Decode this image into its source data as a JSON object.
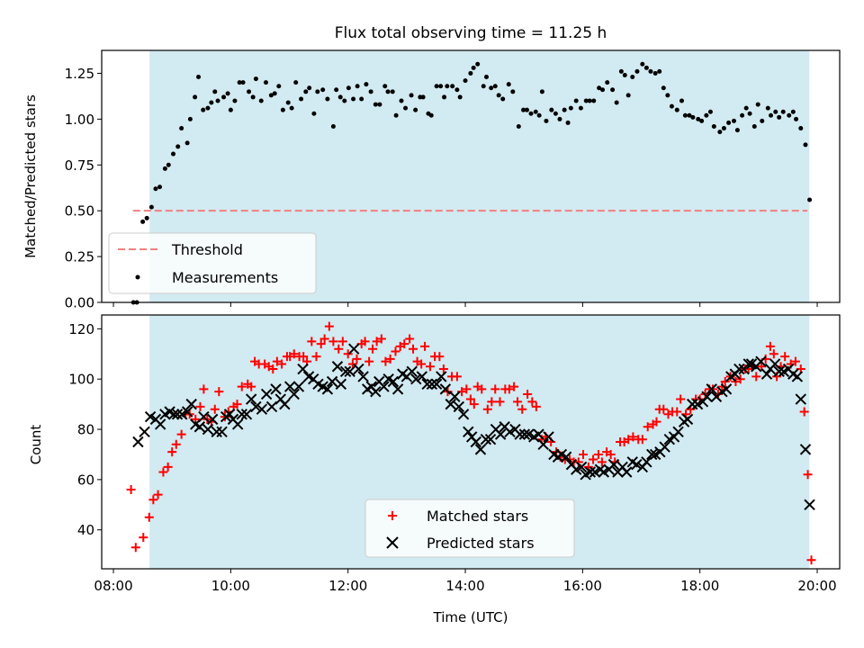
{
  "figure": {
    "title": "Flux total observing time = 11.25 h"
  },
  "colors": {
    "band": "#add8e6",
    "threshold": "#f08080",
    "matched": "#ff0000",
    "predicted": "#000000",
    "measurement": "#000000"
  },
  "chart_data": [
    {
      "type": "scatter",
      "ylabel": "Matched/Predicted stars",
      "ylim": [
        0,
        1.375
      ],
      "yticks": [
        "0.00",
        "0.25",
        "0.50",
        "0.75",
        "1.00",
        "1.25"
      ],
      "legend_placement": "lower-left",
      "observing_window": {
        "start": "08:37",
        "end": "19:52"
      },
      "threshold": {
        "name": "Threshold",
        "value": 0.5,
        "x_start": "08:20",
        "x_end": "19:50"
      },
      "series": [
        {
          "name": "Measurements",
          "x": [
            8.34,
            8.4,
            8.5,
            8.57,
            8.65,
            8.72,
            8.79,
            8.88,
            8.94,
            9.02,
            9.1,
            9.16,
            9.26,
            9.31,
            9.39,
            9.45,
            9.53,
            9.61,
            9.67,
            9.73,
            9.78,
            9.88,
            9.95,
            10.0,
            10.07,
            10.15,
            10.21,
            10.31,
            10.38,
            10.43,
            10.52,
            10.6,
            10.69,
            10.75,
            10.82,
            10.89,
            10.98,
            11.04,
            11.11,
            11.2,
            11.28,
            11.34,
            11.42,
            11.48,
            11.57,
            11.65,
            11.75,
            11.8,
            11.87,
            11.94,
            12.01,
            12.09,
            12.16,
            12.23,
            12.31,
            12.39,
            12.47,
            12.54,
            12.63,
            12.68,
            12.76,
            12.82,
            12.91,
            12.98,
            13.08,
            13.15,
            13.23,
            13.28,
            13.37,
            13.42,
            13.51,
            13.58,
            13.64,
            13.69,
            13.78,
            13.86,
            13.91,
            14.0,
            14.09,
            14.14,
            14.21,
            14.31,
            14.36,
            14.44,
            14.51,
            14.57,
            14.64,
            14.74,
            14.81,
            14.91,
            14.99,
            15.05,
            15.12,
            15.2,
            15.26,
            15.31,
            15.38,
            15.47,
            15.54,
            15.61,
            15.69,
            15.75,
            15.8,
            15.89,
            15.97,
            16.06,
            16.12,
            16.19,
            16.28,
            16.34,
            16.42,
            16.51,
            16.58,
            16.66,
            16.72,
            16.78,
            16.85,
            16.93,
            17.02,
            17.09,
            17.16,
            17.24,
            17.31,
            17.38,
            17.45,
            17.52,
            17.61,
            17.69,
            17.75,
            17.82,
            17.88,
            17.97,
            18.03,
            18.11,
            18.18,
            18.24,
            18.34,
            18.41,
            18.49,
            18.58,
            18.64,
            18.72,
            18.79,
            18.85,
            18.93,
            18.99,
            19.06,
            19.16,
            19.21,
            19.29,
            19.35,
            19.42,
            19.52,
            19.59,
            19.64,
            19.72,
            19.8,
            19.87
          ],
          "y": [
            0.0,
            0.0,
            0.44,
            0.46,
            0.52,
            0.62,
            0.63,
            0.73,
            0.75,
            0.81,
            0.85,
            0.95,
            0.87,
            1.0,
            1.12,
            1.23,
            1.05,
            1.06,
            1.09,
            1.15,
            1.1,
            1.12,
            1.14,
            1.05,
            1.1,
            1.2,
            1.2,
            1.15,
            1.12,
            1.22,
            1.1,
            1.2,
            1.13,
            1.14,
            1.18,
            1.05,
            1.09,
            1.06,
            1.2,
            1.11,
            1.15,
            1.17,
            1.03,
            1.15,
            1.16,
            1.11,
            0.96,
            1.16,
            1.12,
            1.1,
            1.17,
            1.11,
            1.18,
            1.11,
            1.19,
            1.15,
            1.08,
            1.08,
            1.18,
            1.15,
            1.15,
            1.02,
            1.1,
            1.06,
            1.13,
            1.05,
            1.12,
            1.12,
            1.03,
            1.02,
            1.18,
            1.18,
            1.12,
            1.18,
            1.18,
            1.16,
            1.12,
            1.21,
            1.25,
            1.28,
            1.3,
            1.18,
            1.23,
            1.17,
            1.18,
            1.13,
            1.11,
            1.19,
            1.15,
            0.96,
            1.05,
            1.05,
            1.03,
            1.04,
            1.02,
            1.15,
            0.99,
            1.05,
            1.03,
            1.0,
            1.05,
            0.98,
            1.06,
            1.1,
            1.06,
            1.1,
            1.1,
            1.1,
            1.17,
            1.16,
            1.2,
            1.16,
            1.09,
            1.26,
            1.24,
            1.13,
            1.23,
            1.26,
            1.3,
            1.28,
            1.26,
            1.25,
            1.26,
            1.17,
            1.13,
            1.07,
            1.05,
            1.1,
            1.02,
            1.02,
            1.01,
            1.0,
            0.99,
            1.02,
            1.04,
            0.96,
            0.93,
            0.95,
            0.98,
            0.99,
            0.94,
            1.02,
            1.06,
            1.03,
            0.96,
            1.08,
            0.99,
            1.06,
            1.02,
            1.04,
            1.01,
            1.04,
            1.02,
            1.04,
            1.0,
            0.95,
            0.86,
            0.56
          ]
        }
      ]
    },
    {
      "type": "scatter",
      "xlabel": "Time (UTC)",
      "ylabel": "Count",
      "xlim": [
        "07:48",
        "20:23"
      ],
      "ylim": [
        24.5,
        125.5
      ],
      "xticks": [
        "08:00",
        "10:00",
        "12:00",
        "14:00",
        "16:00",
        "18:00",
        "20:00"
      ],
      "yticks": [
        "40",
        "60",
        "80",
        "100",
        "120"
      ],
      "legend_placement": "lower-center",
      "observing_window": {
        "start": "08:37",
        "end": "19:52"
      },
      "series": [
        {
          "name": "Matched stars",
          "x": [
            8.3,
            8.38,
            8.51,
            8.61,
            8.68,
            8.76,
            8.85,
            8.93,
            9.0,
            9.07,
            9.16,
            9.23,
            9.3,
            9.4,
            9.48,
            9.54,
            9.6,
            9.67,
            9.73,
            9.8,
            9.9,
            9.96,
            10.05,
            10.11,
            10.19,
            10.29,
            10.35,
            10.41,
            10.48,
            10.58,
            10.65,
            10.72,
            10.79,
            10.87,
            10.96,
            11.01,
            11.08,
            11.17,
            11.24,
            11.3,
            11.38,
            11.46,
            11.54,
            11.6,
            11.68,
            11.75,
            11.84,
            11.91,
            12.0,
            12.08,
            12.15,
            12.23,
            12.29,
            12.36,
            12.42,
            12.49,
            12.57,
            12.64,
            12.72,
            12.81,
            12.89,
            12.96,
            13.05,
            13.11,
            13.18,
            13.25,
            13.31,
            13.4,
            13.48,
            13.56,
            13.63,
            13.7,
            13.77,
            13.86,
            13.94,
            14.02,
            14.09,
            14.15,
            14.21,
            14.28,
            14.38,
            14.45,
            14.51,
            14.59,
            14.68,
            14.75,
            14.83,
            14.89,
            14.97,
            15.06,
            15.14,
            15.21,
            15.3,
            15.37,
            15.46,
            15.55,
            15.62,
            15.7,
            15.78,
            15.85,
            15.93,
            16.01,
            16.1,
            16.18,
            16.27,
            16.33,
            16.41,
            16.48,
            16.55,
            16.64,
            16.71,
            16.78,
            16.86,
            16.95,
            17.02,
            17.11,
            17.2,
            17.26,
            17.31,
            17.38,
            17.46,
            17.53,
            17.61,
            17.67,
            17.76,
            17.84,
            17.93,
            18.0,
            18.09,
            18.16,
            18.22,
            18.31,
            18.38,
            18.43,
            18.52,
            18.61,
            18.69,
            18.77,
            18.83,
            18.9,
            18.96,
            19.05,
            19.12,
            19.2,
            19.26,
            19.31,
            19.38,
            19.45,
            19.55,
            19.63,
            19.72,
            19.78,
            19.84,
            19.9
          ],
          "y": [
            56,
            33,
            37,
            45,
            52,
            54,
            63,
            65,
            71,
            74,
            78,
            86,
            86,
            84,
            89,
            96,
            84,
            83,
            88,
            95,
            85,
            87,
            89,
            90,
            97,
            98,
            97,
            107,
            106,
            106,
            105,
            104,
            107,
            106,
            109,
            109,
            110,
            109,
            109,
            107,
            115,
            109,
            114,
            116,
            121,
            115,
            112,
            115,
            110,
            106,
            108,
            114,
            115,
            107,
            112,
            115,
            116,
            107,
            108,
            111,
            113,
            114,
            116,
            112,
            107,
            106,
            113,
            105,
            109,
            109,
            104,
            95,
            101,
            101,
            95,
            96,
            92,
            90,
            97,
            96,
            88,
            91,
            96,
            91,
            96,
            96,
            97,
            91,
            88,
            94,
            91,
            89,
            76,
            77,
            75,
            71,
            69,
            68,
            68,
            67,
            67,
            70,
            65,
            68,
            70,
            67,
            71,
            70,
            67,
            75,
            75,
            76,
            77,
            76,
            76,
            81,
            82,
            83,
            88,
            88,
            86,
            87,
            87,
            92,
            86,
            88,
            92,
            92,
            94,
            96,
            96,
            94,
            97,
            99,
            101,
            99,
            100,
            104,
            104,
            105,
            101,
            105,
            108,
            113,
            110,
            101,
            105,
            109,
            106,
            107,
            104,
            87,
            62,
            28
          ]
        },
        {
          "name": "Predicted stars",
          "x": [
            8.42,
            8.53,
            8.63,
            8.72,
            8.8,
            8.88,
            8.96,
            9.03,
            9.09,
            9.17,
            9.26,
            9.33,
            9.4,
            9.47,
            9.54,
            9.61,
            9.69,
            9.76,
            9.85,
            9.92,
            9.98,
            10.04,
            10.12,
            10.19,
            10.27,
            10.35,
            10.43,
            10.53,
            10.61,
            10.7,
            10.77,
            10.85,
            10.92,
            11.01,
            11.08,
            11.16,
            11.23,
            11.33,
            11.41,
            11.49,
            11.57,
            11.65,
            11.73,
            11.82,
            11.88,
            11.96,
            12.03,
            12.1,
            12.18,
            12.26,
            12.33,
            12.4,
            12.47,
            12.53,
            12.61,
            12.69,
            12.77,
            12.85,
            12.93,
            13.0,
            13.09,
            13.16,
            13.26,
            13.35,
            13.43,
            13.51,
            13.59,
            13.66,
            13.75,
            13.82,
            13.89,
            13.97,
            14.05,
            14.11,
            14.18,
            14.26,
            14.35,
            14.43,
            14.52,
            14.6,
            14.67,
            14.76,
            14.85,
            14.93,
            15.01,
            15.08,
            15.17,
            15.25,
            15.33,
            15.42,
            15.51,
            15.58,
            15.64,
            15.72,
            15.81,
            15.89,
            15.98,
            16.05,
            16.13,
            16.21,
            16.3,
            16.36,
            16.45,
            16.53,
            16.6,
            16.68,
            16.75,
            16.85,
            16.92,
            17.02,
            17.09,
            17.18,
            17.24,
            17.32,
            17.4,
            17.48,
            17.56,
            17.63,
            17.73,
            17.79,
            17.87,
            17.96,
            18.05,
            18.12,
            18.2,
            18.28,
            18.38,
            18.45,
            18.53,
            18.6,
            18.67,
            18.75,
            18.83,
            18.88,
            18.96,
            19.04,
            19.14,
            19.2,
            19.28,
            19.35,
            19.43,
            19.51,
            19.59,
            19.66,
            19.72,
            19.8,
            19.87
          ],
          "y": [
            75,
            79,
            85,
            84,
            82,
            86,
            87,
            86,
            86,
            86,
            87,
            90,
            82,
            81,
            85,
            80,
            84,
            79,
            79,
            85,
            86,
            84,
            82,
            86,
            86,
            92,
            89,
            88,
            94,
            89,
            96,
            92,
            90,
            97,
            94,
            97,
            104,
            101,
            100,
            98,
            97,
            96,
            99,
            105,
            98,
            103,
            103,
            112,
            104,
            101,
            96,
            97,
            95,
            99,
            97,
            100,
            99,
            96,
            102,
            101,
            103,
            100,
            101,
            98,
            98,
            98,
            101,
            96,
            90,
            93,
            89,
            86,
            79,
            77,
            75,
            72,
            76,
            76,
            80,
            78,
            81,
            79,
            80,
            78,
            78,
            78,
            77,
            78,
            74,
            77,
            70,
            69,
            70,
            69,
            66,
            64,
            65,
            62,
            63,
            63,
            64,
            63,
            64,
            66,
            63,
            65,
            63,
            67,
            66,
            65,
            67,
            70,
            70,
            71,
            73,
            76,
            77,
            79,
            83,
            84,
            90,
            90,
            91,
            93,
            96,
            93,
            95,
            96,
            101,
            102,
            104,
            104,
            106,
            106,
            105,
            107,
            102,
            104,
            106,
            103,
            103,
            104,
            102,
            101,
            92,
            72,
            50
          ]
        }
      ]
    }
  ]
}
